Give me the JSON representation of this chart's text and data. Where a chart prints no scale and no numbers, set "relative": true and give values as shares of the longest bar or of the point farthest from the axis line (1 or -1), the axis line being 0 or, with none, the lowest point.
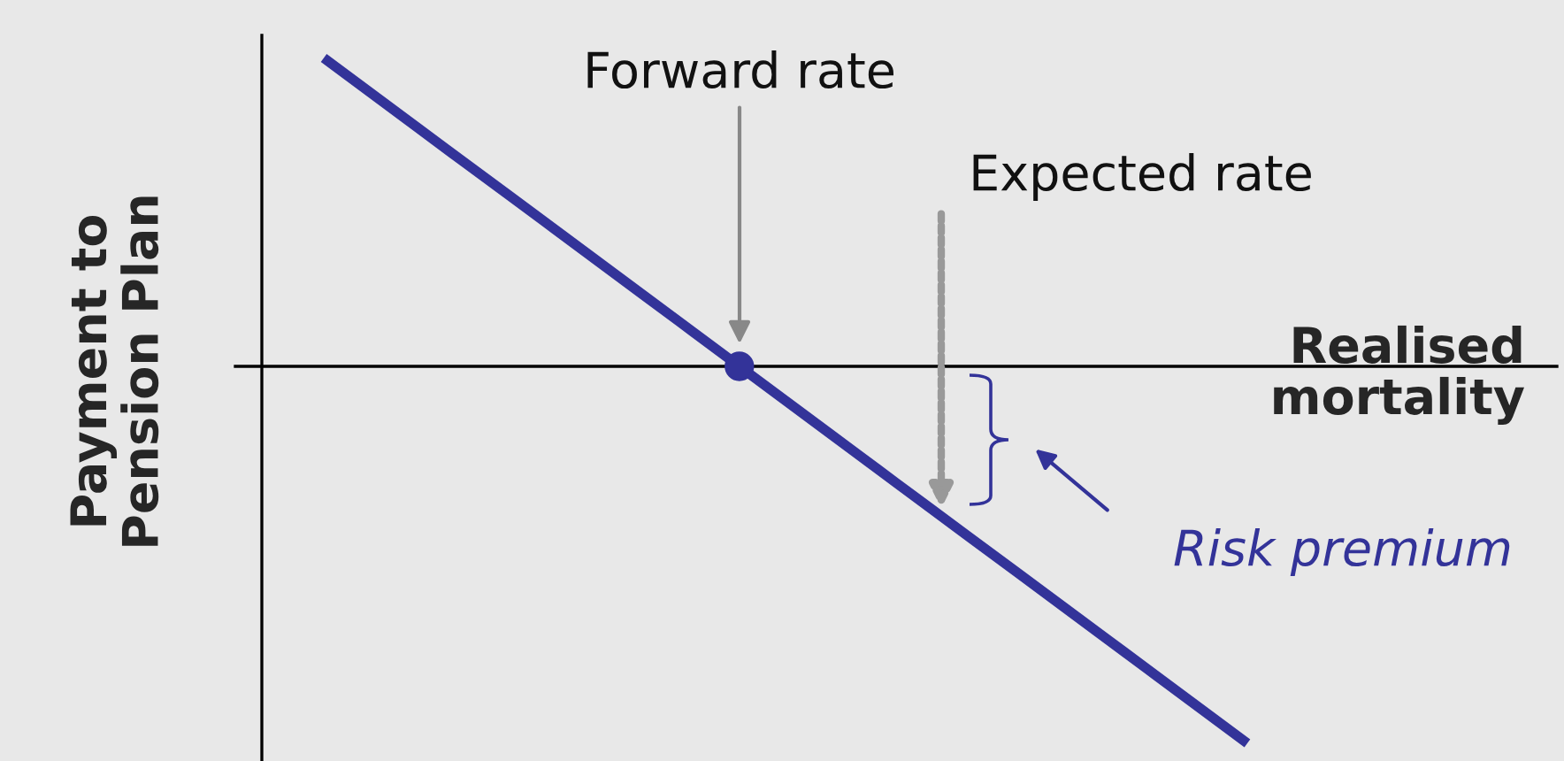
{
  "chart_data": {
    "type": "line",
    "relative": true,
    "xlabel": "Realised\nmortality",
    "ylabel": "Payment to\nPension Plan",
    "categories": [
      null,
      null,
      null,
      null,
      null,
      null,
      null,
      null,
      null,
      null,
      null,
      null,
      null,
      null,
      null,
      null,
      null,
      null,
      null,
      null,
      null
    ],
    "series": [
      {
        "color": "#333399",
        "values": [
          0.818,
          0.727,
          0.636,
          0.545,
          0.455,
          0.364,
          0.273,
          0.182,
          0.091,
          0,
          -0.091,
          -0.182,
          -0.273,
          -0.364,
          -0.455,
          -0.545,
          -0.636,
          -0.727,
          -0.818,
          -0.909,
          -1
        ]
      }
    ],
    "annotations": [
      "Forward rate",
      "Expected rate",
      "Risk premium"
    ]
  }
}
